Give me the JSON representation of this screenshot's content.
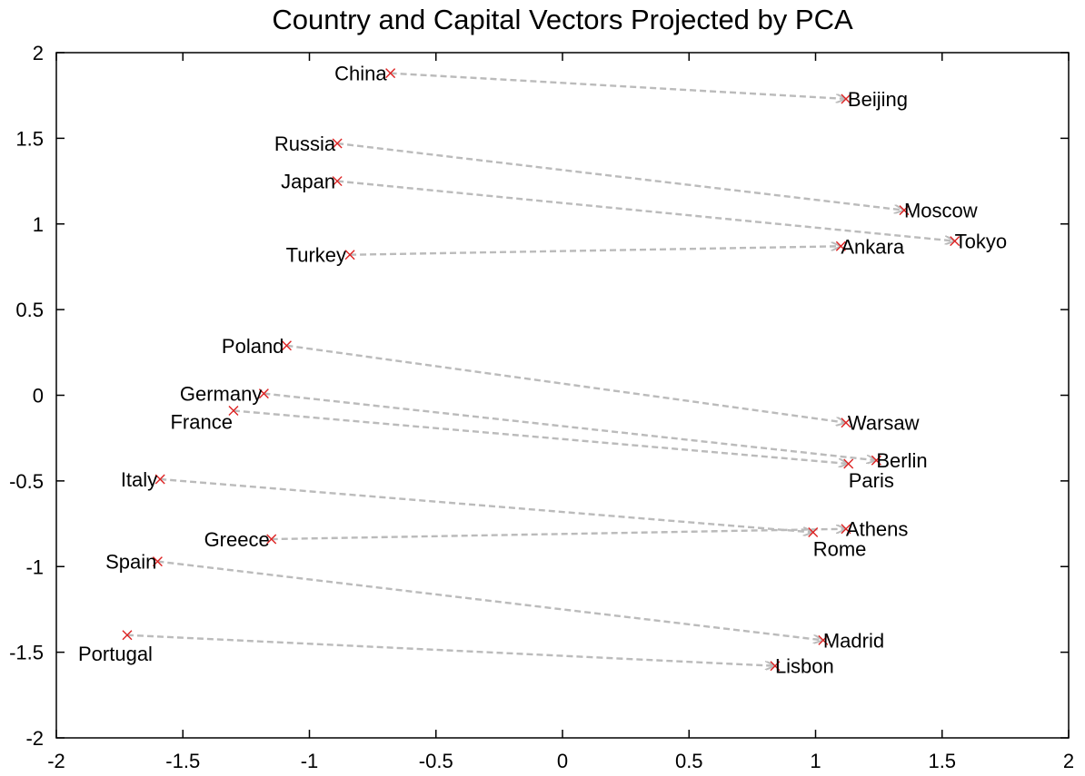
{
  "chart_data": {
    "type": "scatter",
    "title": "Country and Capital Vectors Projected by PCA",
    "xlabel": "",
    "ylabel": "",
    "xlim": [
      -2,
      2
    ],
    "ylim": [
      -2,
      2
    ],
    "xticks": [
      "-2",
      "-1.5",
      "-1",
      "-0.5",
      "0",
      "0.5",
      "1",
      "1.5",
      "2"
    ],
    "yticks": [
      "-2",
      "-1.5",
      "-1",
      "-0.5",
      "0",
      "0.5",
      "1",
      "1.5",
      "2"
    ],
    "grid": false,
    "marker": "x",
    "colors": {
      "marker": "#dd2222",
      "arrow": "#bbbbbb",
      "axes": "#000000"
    },
    "points": [
      {
        "name": "China",
        "x": -0.68,
        "y": 1.88
      },
      {
        "name": "Beijing",
        "x": 1.12,
        "y": 1.73
      },
      {
        "name": "Russia",
        "x": -0.89,
        "y": 1.47
      },
      {
        "name": "Moscow",
        "x": 1.35,
        "y": 1.08
      },
      {
        "name": "Japan",
        "x": -0.89,
        "y": 1.25
      },
      {
        "name": "Tokyo",
        "x": 1.55,
        "y": 0.9
      },
      {
        "name": "Turkey",
        "x": -0.84,
        "y": 0.82
      },
      {
        "name": "Ankara",
        "x": 1.1,
        "y": 0.87
      },
      {
        "name": "Poland",
        "x": -1.09,
        "y": 0.29
      },
      {
        "name": "Warsaw",
        "x": 1.12,
        "y": -0.16
      },
      {
        "name": "Germany",
        "x": -1.18,
        "y": 0.01
      },
      {
        "name": "Berlin",
        "x": 1.24,
        "y": -0.38
      },
      {
        "name": "France",
        "x": -1.3,
        "y": -0.09
      },
      {
        "name": "Paris",
        "x": 1.13,
        "y": -0.4
      },
      {
        "name": "Italy",
        "x": -1.59,
        "y": -0.49
      },
      {
        "name": "Rome",
        "x": 0.99,
        "y": -0.8
      },
      {
        "name": "Greece",
        "x": -1.15,
        "y": -0.84
      },
      {
        "name": "Athens",
        "x": 1.12,
        "y": -0.78
      },
      {
        "name": "Spain",
        "x": -1.6,
        "y": -0.97
      },
      {
        "name": "Madrid",
        "x": 1.03,
        "y": -1.43
      },
      {
        "name": "Portugal",
        "x": -1.72,
        "y": -1.4
      },
      {
        "name": "Lisbon",
        "x": 0.84,
        "y": -1.58
      }
    ],
    "pairs": [
      [
        "China",
        "Beijing"
      ],
      [
        "Russia",
        "Moscow"
      ],
      [
        "Japan",
        "Tokyo"
      ],
      [
        "Turkey",
        "Ankara"
      ],
      [
        "Poland",
        "Warsaw"
      ],
      [
        "Germany",
        "Berlin"
      ],
      [
        "France",
        "Paris"
      ],
      [
        "Italy",
        "Rome"
      ],
      [
        "Greece",
        "Athens"
      ],
      [
        "Spain",
        "Madrid"
      ],
      [
        "Portugal",
        "Lisbon"
      ]
    ]
  }
}
